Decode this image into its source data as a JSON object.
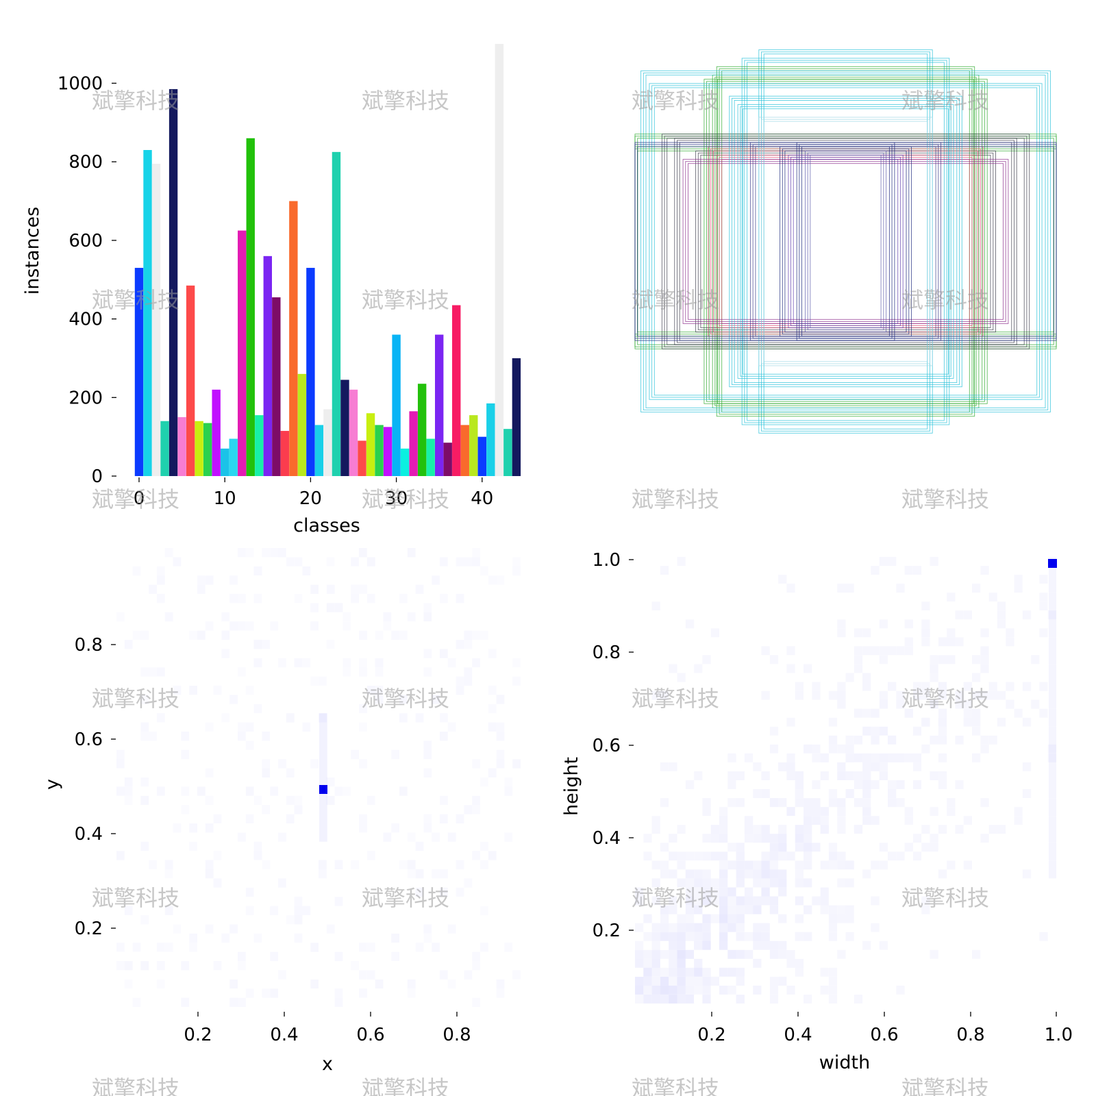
{
  "watermark": "斌擎科技",
  "chart_data": [
    {
      "type": "bar",
      "xlabel": "classes",
      "ylabel": "instances",
      "x_ticks": [
        "0",
        "10",
        "20",
        "30",
        "40"
      ],
      "y_ticks": [
        "0",
        "200",
        "400",
        "600",
        "800",
        "1000"
      ],
      "ylim": [
        0,
        1100
      ],
      "categories": [
        0,
        1,
        2,
        3,
        4,
        5,
        6,
        7,
        8,
        9,
        10,
        11,
        12,
        13,
        14,
        15,
        16,
        17,
        18,
        19,
        20,
        21,
        22,
        23,
        24,
        25,
        26,
        27,
        28,
        29,
        30,
        31,
        32,
        33,
        34,
        35,
        36,
        37,
        38,
        39,
        40,
        41,
        42,
        43,
        44
      ],
      "values": [
        530,
        830,
        795,
        140,
        985,
        150,
        485,
        140,
        135,
        220,
        70,
        95,
        625,
        860,
        155,
        560,
        455,
        115,
        700,
        260,
        530,
        130,
        170,
        825,
        245,
        220,
        90,
        160,
        130,
        125,
        360,
        70,
        165,
        235,
        95,
        360,
        85,
        435,
        130,
        155,
        100,
        185,
        1100,
        120,
        300
      ],
      "colors": [
        "#0b3bff",
        "#17d3e8",
        "#eeeeee",
        "#1fd1ae",
        "#14195e",
        "#f77dd3",
        "#fd4a4a",
        "#c8ef10",
        "#2bd14e",
        "#c110ff",
        "#1bc3e8",
        "#2bd6f0",
        "#e31bb3",
        "#22c10b",
        "#18f0a8",
        "#7b25f2",
        "#7d0c68",
        "#fb3c4e",
        "#f96a2c",
        "#b9e81f",
        "#0b3bff",
        "#1ad0e8",
        "#eeeeee",
        "#1fd1ae",
        "#14195e",
        "#f77dd3",
        "#fd4a4a",
        "#c8ef10",
        "#2bd14e",
        "#c110ff",
        "#09b4f5",
        "#0bf0e0",
        "#e31bb3",
        "#22c10b",
        "#18f0a8",
        "#7b25f2",
        "#7d0c68",
        "#f71c64",
        "#f96a2c",
        "#b9e81f",
        "#0b3bff",
        "#1ad0e8",
        "#eeeeee",
        "#1fd1ae",
        "#14195e"
      ]
    },
    {
      "type": "boxes",
      "description": "normalized label rectangles centered at (0.5, 0.5)",
      "boxes": [
        {
          "w": 0.48,
          "h": 0.86,
          "color": "#22bfd8"
        },
        {
          "w": 0.4,
          "h": 0.9,
          "color": "#22bfd8"
        },
        {
          "w": 0.6,
          "h": 0.82,
          "color": "#2aa82a"
        },
        {
          "w": 0.62,
          "h": 0.78,
          "color": "#2aa82a"
        },
        {
          "w": 0.66,
          "h": 0.76,
          "color": "#2aa82a"
        },
        {
          "w": 0.96,
          "h": 0.8,
          "color": "#22bfd8"
        },
        {
          "w": 0.92,
          "h": 0.74,
          "color": "#22bfd8"
        },
        {
          "w": 1.0,
          "h": 0.5,
          "color": "#2aa82a"
        },
        {
          "w": 1.0,
          "h": 0.44,
          "color": "#2aa82a"
        },
        {
          "w": 0.86,
          "h": 0.5,
          "color": "#3a3a4a"
        },
        {
          "w": 0.7,
          "h": 0.42,
          "color": "#3a3a4a"
        },
        {
          "w": 0.8,
          "h": 0.48,
          "color": "#3a3a4a"
        },
        {
          "w": 0.64,
          "h": 0.44,
          "color": "#e0406a"
        },
        {
          "w": 0.6,
          "h": 0.4,
          "color": "#e0406a"
        },
        {
          "w": 0.76,
          "h": 0.38,
          "color": "#8a2a8a"
        },
        {
          "w": 0.44,
          "h": 0.46,
          "color": "#3a3a8a"
        },
        {
          "w": 0.3,
          "h": 0.44,
          "color": "#16237a"
        },
        {
          "w": 0.22,
          "h": 0.46,
          "color": "#16237a"
        },
        {
          "w": 0.26,
          "h": 0.4,
          "color": "#5a3aaa"
        },
        {
          "w": 0.18,
          "h": 0.42,
          "color": "#5a5aaa"
        },
        {
          "w": 0.5,
          "h": 0.64,
          "color": "#22bfd8"
        },
        {
          "w": 0.54,
          "h": 0.68,
          "color": "#22bfd8"
        },
        {
          "w": 0.4,
          "h": 0.58,
          "color": "#9fd8e6"
        },
        {
          "w": 1.0,
          "h": 0.46,
          "color": "#16237a"
        }
      ]
    },
    {
      "type": "heatmap",
      "xlabel": "x",
      "ylabel": "y",
      "x_ticks": [
        "0.2",
        "0.4",
        "0.6",
        "0.8"
      ],
      "y_ticks": [
        "0.2",
        "0.4",
        "0.6",
        "0.8"
      ],
      "xlim": [
        0,
        1
      ],
      "ylim": [
        0,
        1
      ],
      "peak": {
        "x": 0.5,
        "y": 0.5
      },
      "color": "#0000ee"
    },
    {
      "type": "heatmap",
      "xlabel": "width",
      "ylabel": "height",
      "x_ticks": [
        "0.2",
        "0.4",
        "0.6",
        "0.8",
        "1.0"
      ],
      "y_ticks": [
        "0.2",
        "0.4",
        "0.6",
        "0.8",
        "1.0"
      ],
      "xlim": [
        0,
        1
      ],
      "ylim": [
        0,
        1
      ],
      "peak": {
        "x": 1.0,
        "y": 1.0
      },
      "color": "#0000ee"
    }
  ]
}
